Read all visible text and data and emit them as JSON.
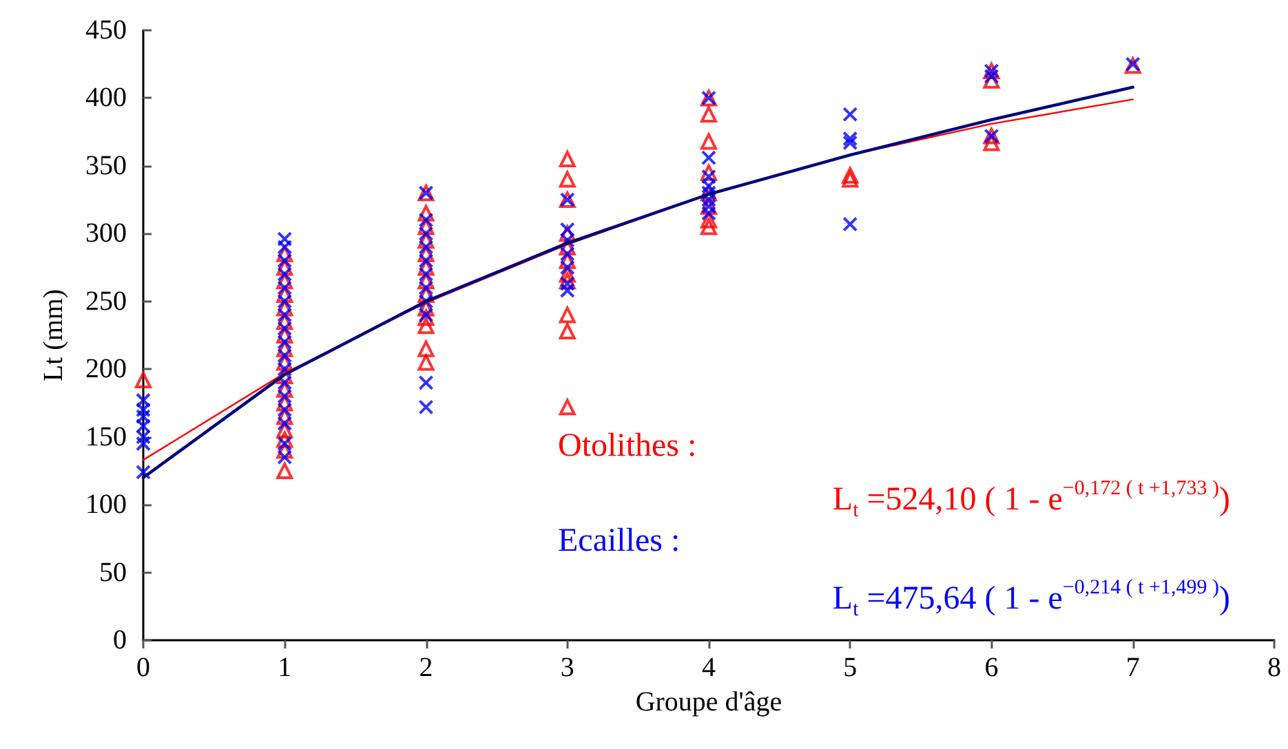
{
  "chart_data": {
    "type": "scatter",
    "xlabel": "Groupe d'âge",
    "ylabel": "Lt (mm)",
    "xlim": [
      0,
      8
    ],
    "xticks": [
      0,
      1,
      2,
      3,
      4,
      5,
      6,
      7,
      8
    ],
    "ylim": [
      0,
      450
    ],
    "yticks": [
      0,
      50,
      100,
      150,
      200,
      250,
      300,
      350,
      400,
      450
    ],
    "grid": false,
    "series": [
      {
        "marker": "triangle",
        "color": "#ff0000",
        "x": [
          0,
          1,
          1,
          1,
          1,
          1,
          1,
          1,
          1,
          1,
          1,
          1,
          1,
          1,
          1,
          1,
          1,
          1,
          2,
          2,
          2,
          2,
          2,
          2,
          2,
          2,
          2,
          2,
          2,
          2,
          2,
          3,
          3,
          3,
          3,
          3,
          3,
          3,
          3,
          3,
          3,
          3,
          4,
          4,
          4,
          4,
          4,
          4,
          4,
          4,
          5,
          5,
          6,
          6,
          6,
          6,
          7
        ],
        "values": [
          192,
          125,
          140,
          148,
          155,
          165,
          175,
          185,
          195,
          205,
          215,
          225,
          235,
          245,
          255,
          265,
          275,
          285,
          205,
          215,
          232,
          238,
          245,
          255,
          265,
          275,
          285,
          295,
          305,
          315,
          330,
          172,
          228,
          240,
          265,
          270,
          280,
          290,
          300,
          325,
          340,
          355,
          305,
          310,
          320,
          330,
          345,
          368,
          388,
          400,
          340,
          343,
          367,
          372,
          413,
          420,
          424
        ]
      },
      {
        "marker": "cross",
        "color": "#0000ff",
        "x": [
          0,
          0,
          0,
          0,
          0,
          0,
          0,
          1,
          1,
          1,
          1,
          1,
          1,
          1,
          1,
          1,
          1,
          1,
          1,
          1,
          1,
          1,
          1,
          1,
          2,
          2,
          2,
          2,
          2,
          2,
          2,
          2,
          2,
          2,
          2,
          3,
          3,
          3,
          3,
          3,
          3,
          3,
          4,
          4,
          4,
          4,
          4,
          4,
          4,
          4,
          5,
          5,
          5,
          5,
          6,
          6,
          6,
          7
        ],
        "values": [
          124,
          145,
          150,
          158,
          165,
          170,
          177,
          135,
          145,
          160,
          170,
          180,
          190,
          200,
          210,
          220,
          230,
          240,
          250,
          260,
          270,
          280,
          290,
          296,
          172,
          190,
          240,
          250,
          260,
          270,
          280,
          290,
          300,
          310,
          330,
          258,
          263,
          275,
          285,
          295,
          303,
          325,
          315,
          320,
          325,
          330,
          335,
          342,
          356,
          400,
          307,
          367,
          370,
          388,
          372,
          416,
          420,
          425
        ]
      },
      {
        "type": "line",
        "marker": "none",
        "line_style": "solid",
        "color": "#ff0000",
        "x": [
          0,
          1,
          2,
          3,
          4,
          5,
          6,
          7
        ],
        "values": [
          133,
          197,
          249,
          292,
          329,
          358,
          381,
          399
        ]
      },
      {
        "type": "line",
        "marker": "none",
        "line_style": "solid",
        "color": "#000080",
        "x": [
          0,
          1,
          2,
          3,
          4,
          5,
          6,
          7
        ],
        "values": [
          120,
          196,
          250,
          293,
          329,
          358,
          384,
          408
        ]
      }
    ],
    "annotations": [
      "Otolithes :",
      "L$_{t}$ =524,10 ( 1 - e$^{−0,172 ( t +1,733 )}$)",
      "Ecailles :",
      "L$_{t}$ =475,64 ( 1 - e$^{−0,214 ( t +1,499 )}$)"
    ]
  }
}
